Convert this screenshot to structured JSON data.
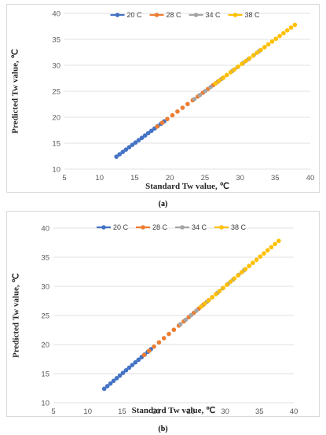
{
  "chart_data": [
    {
      "type": "scatter",
      "panel_label": "(a)",
      "title": "",
      "xlabel": "Standard Tw value, ℃",
      "ylabel": "Predicted Tw value, ℃",
      "xlim": [
        5,
        40
      ],
      "ylim": [
        10,
        40
      ],
      "xticks": [
        "5",
        "10",
        "15",
        "20",
        "25",
        "30",
        "35",
        "40"
      ],
      "yticks": [
        "10",
        "15",
        "20",
        "25",
        "30",
        "35",
        "40"
      ],
      "grid": true,
      "legend_position": "top",
      "series": [
        {
          "name": "20 C",
          "color": "#4472C4",
          "x_range": [
            12.4,
            19.2
          ],
          "n": 16
        },
        {
          "name": "28 C",
          "color": "#ED7D31",
          "x_range": [
            18.2,
            27.6
          ],
          "n": 14
        },
        {
          "name": "34 C",
          "color": "#A5A5A5",
          "x_range": [
            23.5,
            33.5
          ],
          "n": 14
        },
        {
          "name": "38 C",
          "color": "#FFC000",
          "x_range": [
            26.5,
            37.8
          ],
          "n": 22
        }
      ]
    },
    {
      "type": "scatter",
      "panel_label": "(b)",
      "title": "",
      "xlabel": "Standard Tw value, ℃",
      "ylabel": "Predicted Tw value, ℃",
      "xlim": [
        5,
        40
      ],
      "ylim": [
        10,
        40
      ],
      "xticks": [
        "5",
        "10",
        "15",
        "20",
        "25",
        "30",
        "35",
        "40"
      ],
      "yticks": [
        "10",
        "15",
        "20",
        "25",
        "30",
        "35",
        "40"
      ],
      "grid": true,
      "legend_position": "top",
      "series": [
        {
          "name": "20 C",
          "color": "#4472C4",
          "x_range": [
            12.4,
            19.2
          ],
          "n": 16
        },
        {
          "name": "28 C",
          "color": "#ED7D31",
          "x_range": [
            18.2,
            27.6
          ],
          "n": 14
        },
        {
          "name": "34 C",
          "color": "#A5A5A5",
          "x_range": [
            23.5,
            33.5
          ],
          "n": 14
        },
        {
          "name": "38 C",
          "color": "#FFC000",
          "x_range": [
            26.5,
            37.8
          ],
          "n": 22
        }
      ]
    }
  ]
}
